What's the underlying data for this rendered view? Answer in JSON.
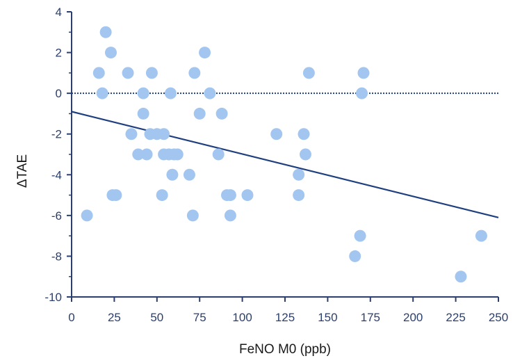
{
  "chart_data": {
    "type": "scatter",
    "xlabel": "FeNO M0 (ppb)",
    "ylabel": "ΔTAE",
    "xlim": [
      0,
      250
    ],
    "ylim": [
      -10,
      4
    ],
    "x_ticks": [
      0,
      25,
      50,
      75,
      100,
      125,
      150,
      175,
      200,
      225,
      250
    ],
    "y_ticks": [
      4,
      2,
      0,
      -2,
      -4,
      -6,
      -8,
      -10
    ],
    "grid": false,
    "legend": "none",
    "reference_line": {
      "y": 0,
      "style": "dotted"
    },
    "trend_line": {
      "x": [
        0,
        250
      ],
      "y": [
        -0.9,
        -6.1
      ]
    },
    "colors": {
      "points": "#a3c6f0",
      "lines": "#1f3f7f",
      "axis": "#2a3f6e"
    },
    "points": [
      {
        "x": 20,
        "y": 3
      },
      {
        "x": 23,
        "y": 2
      },
      {
        "x": 78,
        "y": 2
      },
      {
        "x": 16,
        "y": 1
      },
      {
        "x": 33,
        "y": 1
      },
      {
        "x": 47,
        "y": 1
      },
      {
        "x": 72,
        "y": 1
      },
      {
        "x": 139,
        "y": 1
      },
      {
        "x": 171,
        "y": 1
      },
      {
        "x": 18,
        "y": 0
      },
      {
        "x": 42,
        "y": 0
      },
      {
        "x": 58,
        "y": 0
      },
      {
        "x": 81,
        "y": 0
      },
      {
        "x": 170,
        "y": 0
      },
      {
        "x": 42,
        "y": -1
      },
      {
        "x": 75,
        "y": -1
      },
      {
        "x": 88,
        "y": -1
      },
      {
        "x": 35,
        "y": -2
      },
      {
        "x": 46,
        "y": -2
      },
      {
        "x": 50,
        "y": -2
      },
      {
        "x": 54,
        "y": -2
      },
      {
        "x": 120,
        "y": -2
      },
      {
        "x": 136,
        "y": -2
      },
      {
        "x": 39,
        "y": -3
      },
      {
        "x": 44,
        "y": -3
      },
      {
        "x": 54,
        "y": -3
      },
      {
        "x": 57,
        "y": -3
      },
      {
        "x": 60,
        "y": -3
      },
      {
        "x": 62,
        "y": -3
      },
      {
        "x": 86,
        "y": -3
      },
      {
        "x": 137,
        "y": -3
      },
      {
        "x": 59,
        "y": -4
      },
      {
        "x": 69,
        "y": -4
      },
      {
        "x": 133,
        "y": -4
      },
      {
        "x": 24,
        "y": -5
      },
      {
        "x": 26,
        "y": -5
      },
      {
        "x": 53,
        "y": -5
      },
      {
        "x": 91,
        "y": -5
      },
      {
        "x": 93,
        "y": -5
      },
      {
        "x": 103,
        "y": -5
      },
      {
        "x": 133,
        "y": -5
      },
      {
        "x": 9,
        "y": -6
      },
      {
        "x": 71,
        "y": -6
      },
      {
        "x": 93,
        "y": -6
      },
      {
        "x": 169,
        "y": -7
      },
      {
        "x": 240,
        "y": -7
      },
      {
        "x": 166,
        "y": -8
      },
      {
        "x": 228,
        "y": -9
      }
    ]
  }
}
